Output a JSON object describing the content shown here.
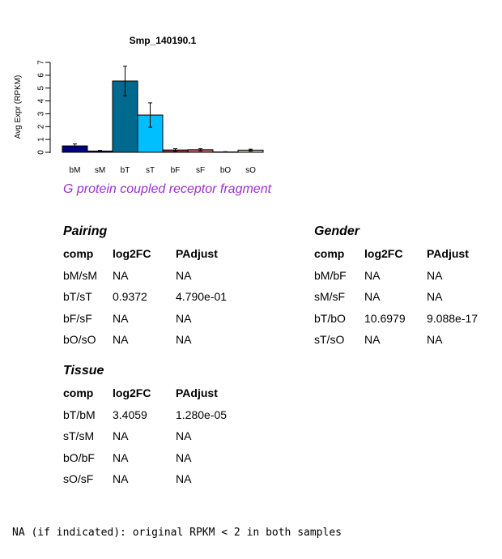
{
  "chart_data": {
    "type": "bar",
    "title": "Smp_140190.1",
    "ylabel": "Avg Expr (RPKM)",
    "xlabel": "",
    "categories": [
      "bM",
      "sM",
      "bT",
      "sT",
      "bF",
      "sF",
      "bO",
      "sO"
    ],
    "values": [
      0.5,
      0.1,
      5.55,
      2.9,
      0.18,
      0.2,
      0.03,
      0.17
    ],
    "errors": [
      0.15,
      0.05,
      1.15,
      0.95,
      0.1,
      0.08,
      0.02,
      0.07
    ],
    "colors": [
      "#000080",
      "#0000cd",
      "#006a8e",
      "#00bfff",
      "#a52a2a",
      "#cd5c5c",
      "#e8e8e8",
      "#c4c4a4"
    ],
    "yticks": [
      0,
      1,
      2,
      3,
      4,
      5,
      6,
      7
    ],
    "ylim": [
      0,
      7
    ],
    "grid": false
  },
  "subtitle": "G protein coupled receptor fragment",
  "tables": {
    "pairing": {
      "title": "Pairing",
      "headers": [
        "comp",
        "log2FC",
        "PAdjust"
      ],
      "rows": [
        [
          "bM/sM",
          "NA",
          "NA"
        ],
        [
          "bT/sT",
          "0.9372",
          "4.790e-01"
        ],
        [
          "bF/sF",
          "NA",
          "NA"
        ],
        [
          "bO/sO",
          "NA",
          "NA"
        ]
      ]
    },
    "gender": {
      "title": "Gender",
      "headers": [
        "comp",
        "log2FC",
        "PAdjust"
      ],
      "rows": [
        [
          "bM/bF",
          "NA",
          "NA"
        ],
        [
          "sM/sF",
          "NA",
          "NA"
        ],
        [
          "bT/bO",
          "10.6979",
          "9.088e-17"
        ],
        [
          "sT/sO",
          "NA",
          "NA"
        ]
      ]
    },
    "tissue": {
      "title": "Tissue",
      "headers": [
        "comp",
        "log2FC",
        "PAdjust"
      ],
      "rows": [
        [
          "bT/bM",
          "3.4059",
          "1.280e-05"
        ],
        [
          "sT/sM",
          "NA",
          "NA"
        ],
        [
          "bO/bF",
          "NA",
          "NA"
        ],
        [
          "sO/sF",
          "NA",
          "NA"
        ]
      ]
    }
  },
  "footnote": "NA (if indicated): original RPKM < 2 in both samples"
}
